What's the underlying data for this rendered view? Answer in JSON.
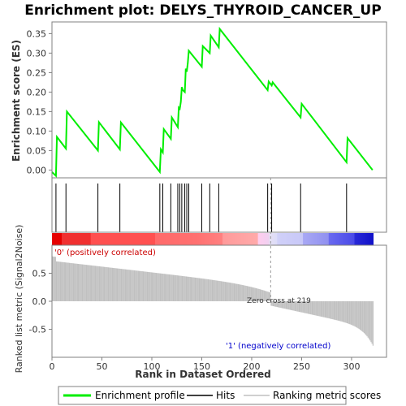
{
  "chart_data": {
    "type": "line",
    "title": "Enrichment plot: DELYS_THYROID_CANCER_UP",
    "top_panel": {
      "ylabel": "Enrichment score (ES)",
      "ylim": [
        -0.02,
        0.38
      ],
      "yticks": [
        "0.00",
        "0.05",
        "0.10",
        "0.15",
        "0.20",
        "0.25",
        "0.30",
        "0.35"
      ],
      "ytick_values": [
        0.0,
        0.05,
        0.1,
        0.15,
        0.2,
        0.25,
        0.3,
        0.35
      ],
      "series": [
        {
          "name": "Enrichment profile",
          "color": "#00ee00",
          "x": [
            0,
            4,
            5,
            14,
            15,
            46,
            47,
            68,
            69,
            108,
            109,
            111,
            112,
            119,
            120,
            126,
            127,
            128,
            129,
            130,
            131,
            133,
            134,
            135,
            136,
            137,
            150,
            151,
            158,
            159,
            167,
            168,
            216,
            217,
            220,
            221,
            249,
            250,
            295,
            296,
            321
          ],
          "y": [
            -0.005,
            -0.015,
            0.085,
            0.055,
            0.15,
            0.05,
            0.123,
            0.053,
            0.122,
            -0.005,
            0.053,
            0.045,
            0.105,
            0.08,
            0.135,
            0.11,
            0.16,
            0.157,
            0.175,
            0.213,
            0.205,
            0.2,
            0.26,
            0.252,
            0.275,
            0.306,
            0.265,
            0.318,
            0.3,
            0.345,
            0.315,
            0.362,
            0.205,
            0.227,
            0.217,
            0.225,
            0.135,
            0.17,
            0.02,
            0.082,
            0.0
          ]
        }
      ]
    },
    "hits": [
      4,
      14,
      46,
      68,
      108,
      111,
      119,
      126,
      128,
      130,
      133,
      135,
      137,
      150,
      158,
      167,
      216,
      220,
      249,
      295
    ],
    "bottom_panel": {
      "ylabel": "Ranked list metric (Signal2Noise)",
      "ylim": [
        -1.0,
        1.0
      ],
      "yticks": [
        "-0.5",
        "0.0",
        "0.5"
      ],
      "ytick_values": [
        -0.5,
        0.0,
        0.5
      ],
      "positive_label": "'0' (positively correlated)",
      "negative_label": "'1' (negatively correlated)",
      "zero_cross_label": "Zero cross at 219",
      "zero_cross": 219
    },
    "xlabel": "Rank in Dataset Ordered",
    "xlim": [
      0,
      335
    ],
    "xticks": [
      "0",
      "50",
      "100",
      "150",
      "200",
      "250",
      "300"
    ],
    "xtick_values": [
      0,
      50,
      100,
      150,
      200,
      250,
      300
    ],
    "n_genes": 322,
    "legend": {
      "placement": "bottom",
      "items": [
        "Enrichment profile",
        "Hits",
        "Ranking metric scores"
      ]
    },
    "colors": {
      "profile": "#00ee00",
      "hits": "#000000",
      "metric_bars": "#c0c0c0",
      "positive": "#ff0000",
      "negative": "#0000ff"
    }
  }
}
